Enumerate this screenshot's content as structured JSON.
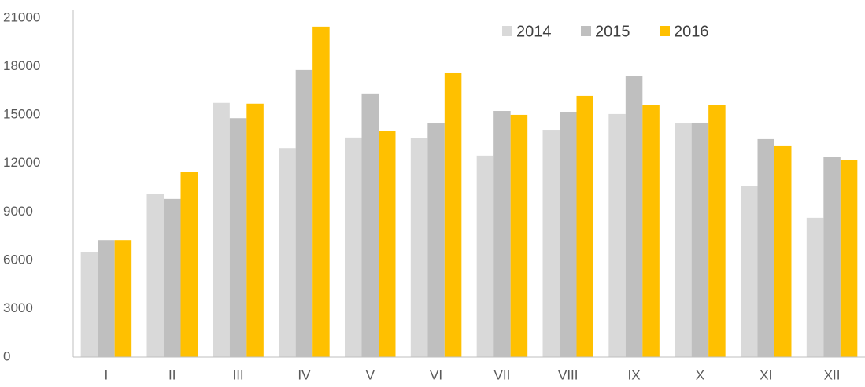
{
  "chart_data": {
    "type": "bar",
    "categories": [
      "I",
      "II",
      "III",
      "IV",
      "V",
      "VI",
      "VII",
      "VIII",
      "IX",
      "X",
      "XI",
      "XII"
    ],
    "series": [
      {
        "name": "2014",
        "color": "#d9d9d9",
        "values": [
          6500,
          10100,
          15750,
          12950,
          13600,
          13550,
          12480,
          14080,
          15060,
          14470,
          10580,
          8630
        ]
      },
      {
        "name": "2015",
        "color": "#bfbfbf",
        "values": [
          7250,
          9800,
          14800,
          17790,
          16330,
          14470,
          15250,
          15160,
          17400,
          14520,
          13500,
          12380
        ]
      },
      {
        "name": "2016",
        "color": "#ffc000",
        "values": [
          7250,
          11450,
          15700,
          20470,
          14030,
          17590,
          15010,
          16180,
          15600,
          15600,
          13110,
          12230
        ]
      }
    ],
    "ylim": [
      0,
      21000
    ],
    "yticks": [
      0,
      3000,
      6000,
      9000,
      12000,
      15000,
      18000,
      21000
    ],
    "legend": "top-right"
  }
}
